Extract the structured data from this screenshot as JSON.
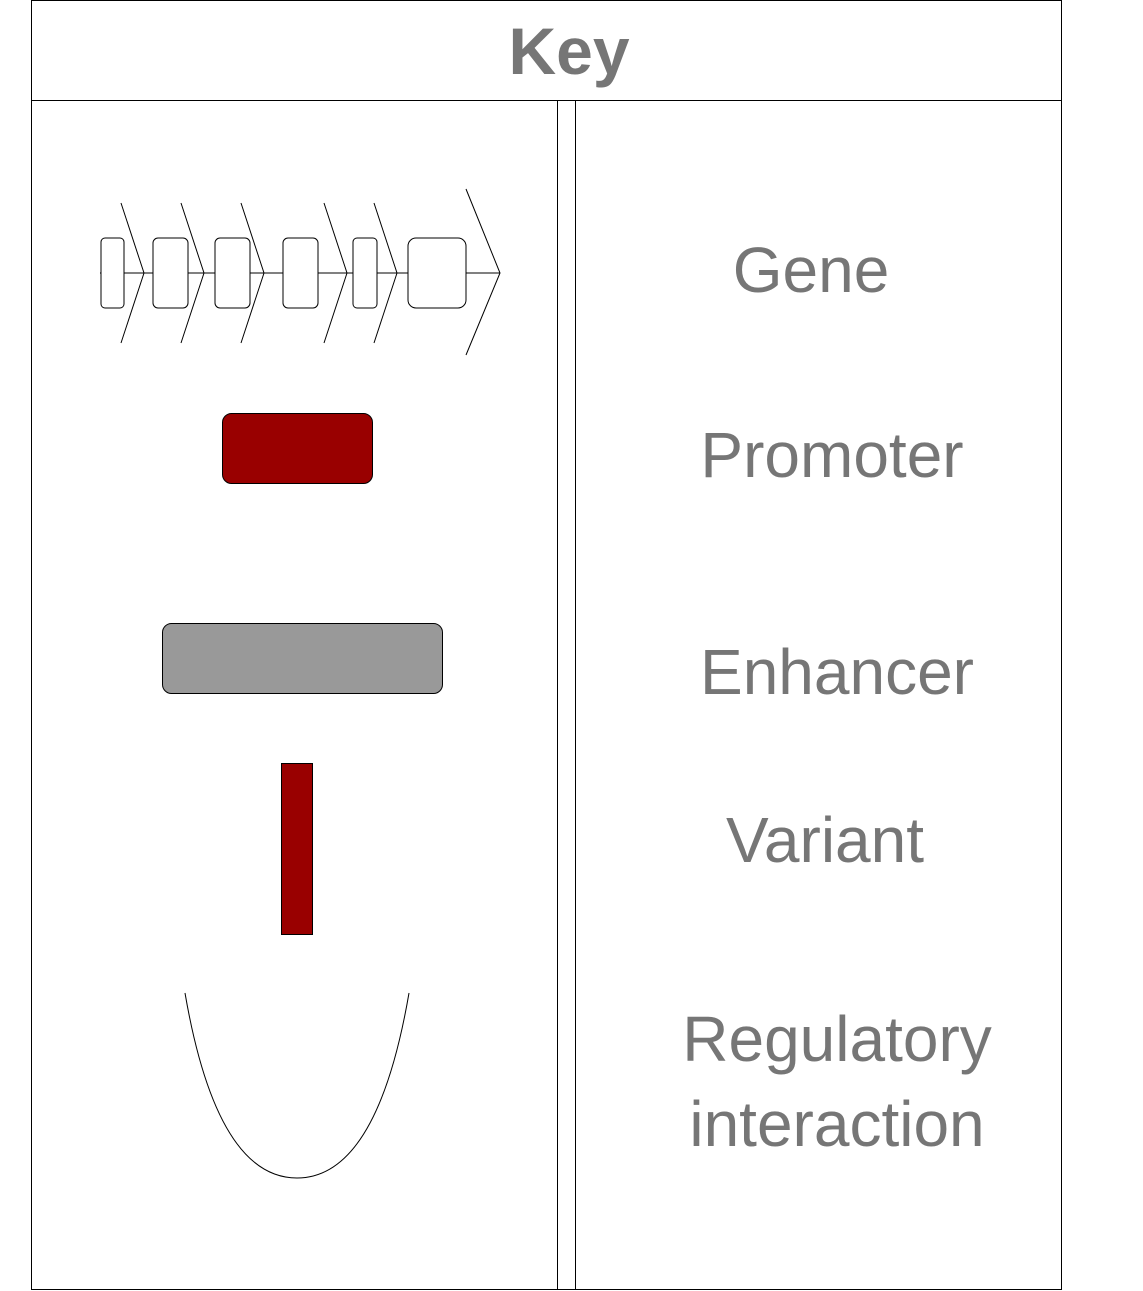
{
  "key": {
    "title": "Key",
    "items": [
      {
        "label": "Gene",
        "symbol": "exon-boxes-with-arrows"
      },
      {
        "label": "Promoter",
        "symbol": "rounded-rect",
        "color": "#990000"
      },
      {
        "label": "Enhancer",
        "symbol": "rounded-rect",
        "color": "#999999"
      },
      {
        "label": "Variant",
        "symbol": "bar",
        "color": "#990000"
      },
      {
        "label_line1": "Regulatory",
        "label_line2": "interaction",
        "symbol": "arc"
      }
    ]
  },
  "colors": {
    "text": "#767676",
    "border": "#000000",
    "promoter": "#990000",
    "enhancer": "#999999",
    "variant": "#990000"
  }
}
